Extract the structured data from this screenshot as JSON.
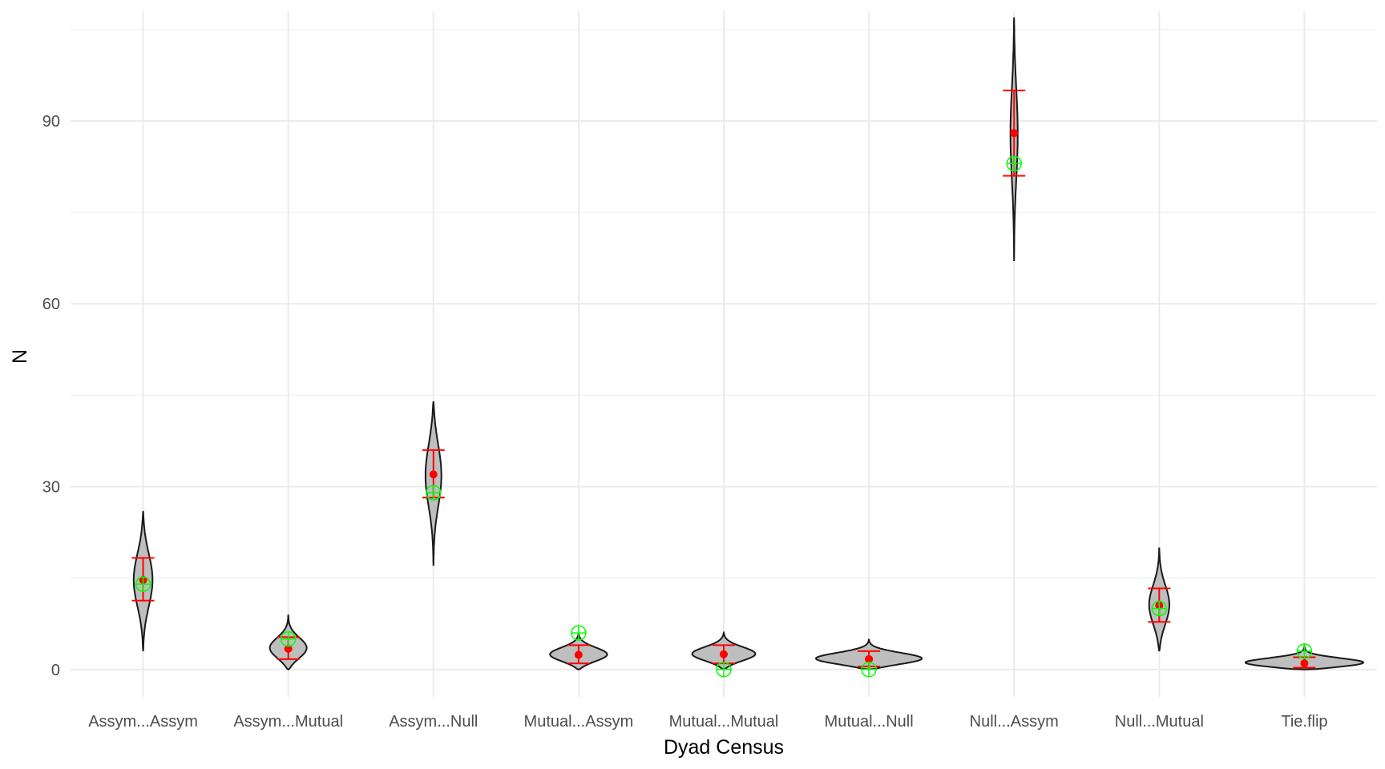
{
  "chart_data": {
    "type": "violin",
    "xlabel": "Dyad Census",
    "ylabel": "N",
    "ylim": [
      -4.5,
      108
    ],
    "y_ticks": [
      "0",
      "30",
      "60",
      "90"
    ],
    "y_tick_values": [
      0,
      30,
      60,
      90
    ],
    "y_minor_values": [
      15,
      45,
      75,
      105
    ],
    "grid": true,
    "categories": [
      "Assym...Assym",
      "Assym...Mutual",
      "Assym...Null",
      "Mutual...Assym",
      "Mutual...Mutual",
      "Mutual...Null",
      "Null...Assym",
      "Null...Mutual",
      "Tie.flip"
    ],
    "distributions": [
      {
        "min": 3,
        "max": 26,
        "mean": 14.7,
        "ci_low": 11.3,
        "ci_high": 18.3,
        "observed": 14,
        "width": 0.13
      },
      {
        "min": 0,
        "max": 9,
        "mean": 3.4,
        "ci_low": 1.7,
        "ci_high": 5.3,
        "observed": 5,
        "width": 0.26
      },
      {
        "min": 17,
        "max": 44,
        "mean": 32,
        "ci_low": 28.2,
        "ci_high": 36,
        "observed": 29,
        "width": 0.11
      },
      {
        "min": 0,
        "max": 6,
        "mean": 2.4,
        "ci_low": 1,
        "ci_high": 4,
        "observed": 6,
        "width": 0.4
      },
      {
        "min": 0,
        "max": 6,
        "mean": 2.5,
        "ci_low": 1,
        "ci_high": 4,
        "observed": 0,
        "width": 0.44
      },
      {
        "min": 0,
        "max": 5,
        "mean": 1.7,
        "ci_low": 0.5,
        "ci_high": 3,
        "observed": 0,
        "width": 0.76
      },
      {
        "min": 67,
        "max": 107,
        "mean": 88,
        "ci_low": 81,
        "ci_high": 95,
        "observed": 83,
        "width": 0.05
      },
      {
        "min": 3,
        "max": 20,
        "mean": 10.5,
        "ci_low": 7.8,
        "ci_high": 13.3,
        "observed": 10,
        "width": 0.14
      },
      {
        "min": 0,
        "max": 4,
        "mean": 1,
        "ci_low": 0.3,
        "ci_high": 2,
        "observed": 3,
        "width": 0.9
      }
    ],
    "colors": {
      "violin_fill": "#bebebe",
      "violin_stroke": "#1a1a1a",
      "mean": "#ff0000",
      "ci": "#ff0000",
      "observed": "#00ff00",
      "grid": "#ebebeb",
      "tick_text": "#4d4d4d",
      "title_text": "#000000"
    }
  }
}
